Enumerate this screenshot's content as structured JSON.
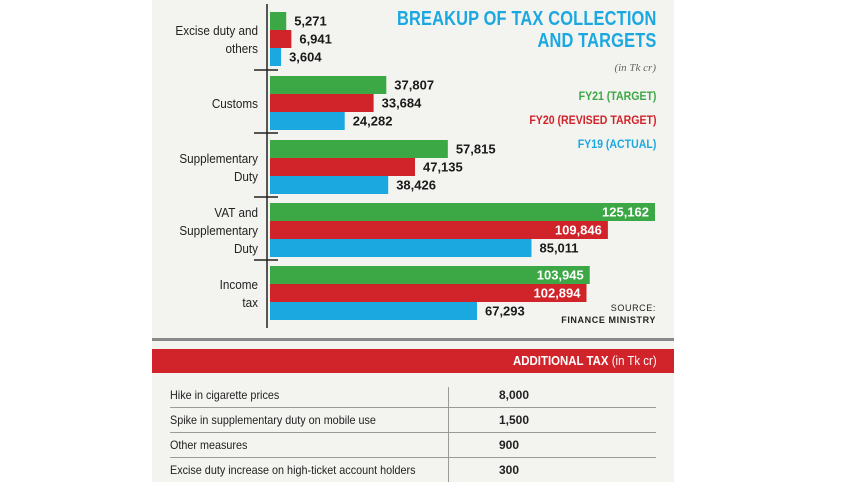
{
  "chart_data": {
    "type": "bar",
    "orientation": "horizontal",
    "title_lines": [
      "BREAKUP OF TAX COLLECTION",
      "AND TARGETS"
    ],
    "unit_note": "(in Tk cr)",
    "categories": [
      [
        "Excise duty and",
        "others"
      ],
      [
        "Customs"
      ],
      [
        "Supplementary",
        "Duty"
      ],
      [
        "VAT and",
        "Supplementary",
        "Duty"
      ],
      [
        "Income",
        "tax"
      ]
    ],
    "series": [
      {
        "name": "FY21 (TARGET)",
        "color": "#3ba845",
        "values": [
          5271,
          37807,
          57815,
          125162,
          103945
        ],
        "labels": [
          "5,271",
          "37,807",
          "57,815",
          "125,162",
          "103,945"
        ]
      },
      {
        "name": "FY20 (REVISED TARGET)",
        "color": "#d0232a",
        "values": [
          6941,
          33684,
          47135,
          109846,
          102894
        ],
        "labels": [
          "6,941",
          "33,684",
          "47,135",
          "109,846",
          "102,894"
        ]
      },
      {
        "name": "FY19 (ACTUAL)",
        "color": "#1ba8e0",
        "values": [
          3604,
          24282,
          38426,
          85011,
          67293
        ],
        "labels": [
          "3,604",
          "24,282",
          "38,426",
          "85,011",
          "67,293"
        ]
      }
    ],
    "source_lines": [
      "SOURCE:",
      "FINANCE MINISTRY"
    ]
  },
  "additional_tax": {
    "title": "ADDITIONAL TAX",
    "unit": " (in Tk cr)",
    "rows": [
      {
        "label": "Hike in cigarette prices",
        "value": "8,000"
      },
      {
        "label": "Spike in supplementary duty on mobile use",
        "value": "1,500"
      },
      {
        "label": "Other measures",
        "value": "900"
      },
      {
        "label": "Excise duty increase on high-ticket account holders",
        "value": "300"
      }
    ]
  }
}
